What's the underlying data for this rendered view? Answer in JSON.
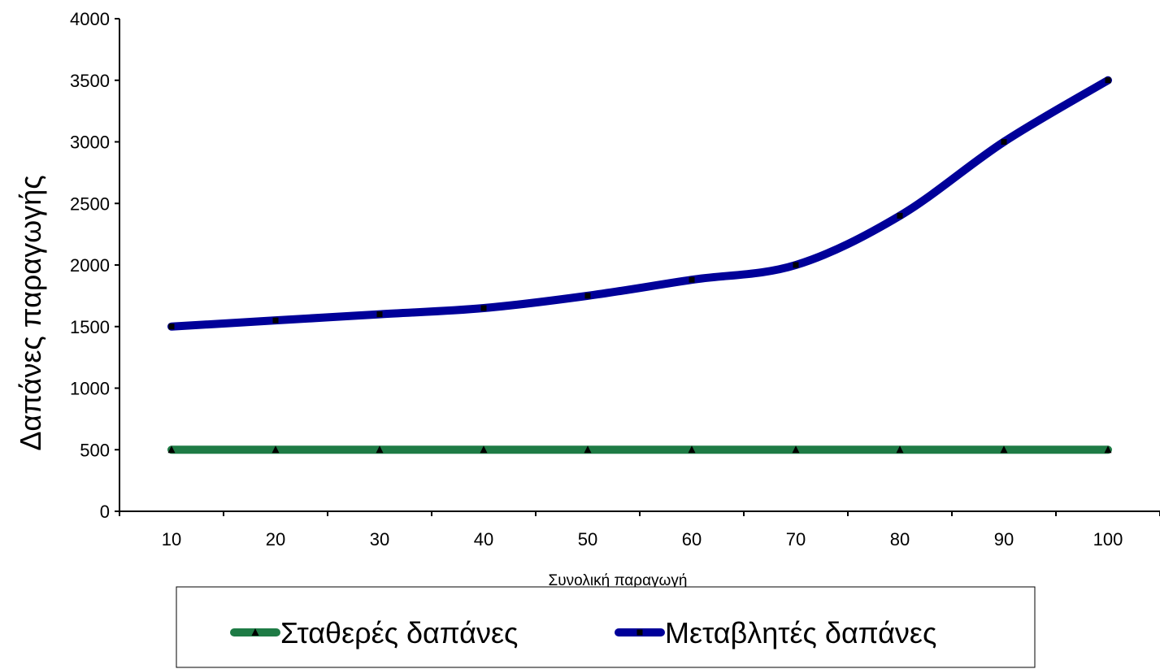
{
  "chart_data": {
    "type": "line",
    "title": "",
    "xlabel": "Συνολική παραγωγή",
    "ylabel": "Δαπάνες παραγωγής",
    "categories": [
      "10",
      "20",
      "30",
      "40",
      "50",
      "60",
      "70",
      "80",
      "90",
      "100"
    ],
    "ylim": [
      0,
      4000
    ],
    "yticks": [
      0,
      500,
      1000,
      1500,
      2000,
      2500,
      3000,
      3500,
      4000
    ],
    "grid": false,
    "legend_position": "bottom",
    "series": [
      {
        "name": "Σταθερές δαπάνες",
        "values": [
          500,
          500,
          500,
          500,
          500,
          500,
          500,
          500,
          500,
          500
        ],
        "color": "#1e7b45",
        "marker": "triangle",
        "smooth": true
      },
      {
        "name": "Μεταβλητές δαπάνες",
        "values": [
          1500,
          1550,
          1600,
          1650,
          1750,
          1880,
          2000,
          2400,
          3000,
          3500
        ],
        "color": "#000099",
        "marker": "square",
        "smooth": true
      }
    ]
  }
}
